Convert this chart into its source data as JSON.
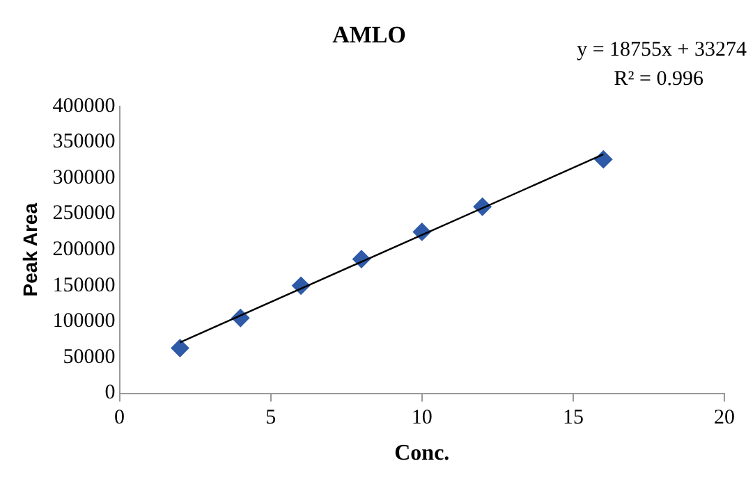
{
  "chart_data": {
    "type": "scatter",
    "title": "AMLO",
    "xlabel": "Conc.",
    "ylabel": "Peak Area",
    "xlim": [
      0,
      20
    ],
    "xticks": [
      0,
      5,
      10,
      15,
      20
    ],
    "ylim": [
      0,
      400000
    ],
    "yticks": [
      0,
      50000,
      100000,
      150000,
      200000,
      250000,
      300000,
      350000,
      400000
    ],
    "grid": false,
    "legend": false,
    "marker": "diamond",
    "series": [
      {
        "color": "#2e5aa8",
        "x": [
          2,
          4,
          6,
          8,
          10,
          12,
          16
        ],
        "values": [
          63000,
          105000,
          150000,
          187000,
          225000,
          260000,
          326000
        ]
      },
      {
        "type": "line",
        "color": "#000000",
        "marker": "none",
        "x": [
          2,
          16
        ],
        "values": [
          71000,
          333000
        ]
      }
    ],
    "annotations": [
      "y = 18755x + 33274",
      "R² = 0.996"
    ]
  }
}
